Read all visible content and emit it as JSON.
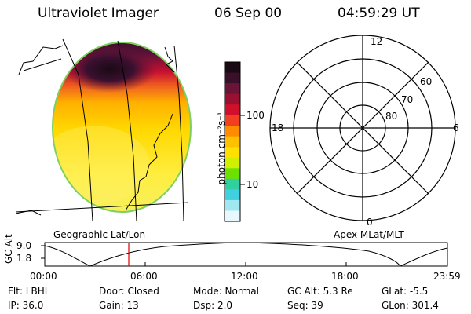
{
  "header": {
    "instrument": "Ultraviolet Imager",
    "date": "06 Sep 00",
    "time": "04:59:29 UT"
  },
  "colorbar": {
    "unit_label": "photon cm⁻²s⁻¹",
    "ticks": [
      "100",
      "10"
    ],
    "colors": [
      "#1a0a14",
      "#3a0f2a",
      "#6a1438",
      "#9a1030",
      "#d0102a",
      "#f04020",
      "#ff8c00",
      "#ffc000",
      "#ffe000",
      "#d0f000",
      "#6ce000",
      "#30d0a0",
      "#40d0e0",
      "#a0e8f0",
      "#e8f8ff"
    ]
  },
  "polar_plot": {
    "mlt_labels": [
      "12",
      "18",
      "6",
      "0"
    ],
    "lat_labels": [
      "60",
      "70",
      "80"
    ]
  },
  "map": {
    "label": "Geographic Lat/Lon"
  },
  "polar_caption": "Apex MLat/MLT",
  "altitude_strip": {
    "ylabel": "GC Alt",
    "yticks": [
      "9.0",
      "1.8"
    ],
    "xticks": [
      "00:00",
      "06:00",
      "12:00",
      "18:00",
      "23:59"
    ],
    "marker_time": "04:59"
  },
  "footer": {
    "row1": {
      "filter": "Flt: LBHL",
      "door": "Door: Closed",
      "mode": "Mode: Normal",
      "gc_alt": "GC Alt: 5.3 Re",
      "glat": "GLat:   -5.5"
    },
    "row2": {
      "ip": "IP: 36.0",
      "gain": "Gain: 13",
      "dsp": "Dsp:      2.0",
      "seq": "Seq: 39",
      "glon": "GLon: 301.4"
    }
  }
}
